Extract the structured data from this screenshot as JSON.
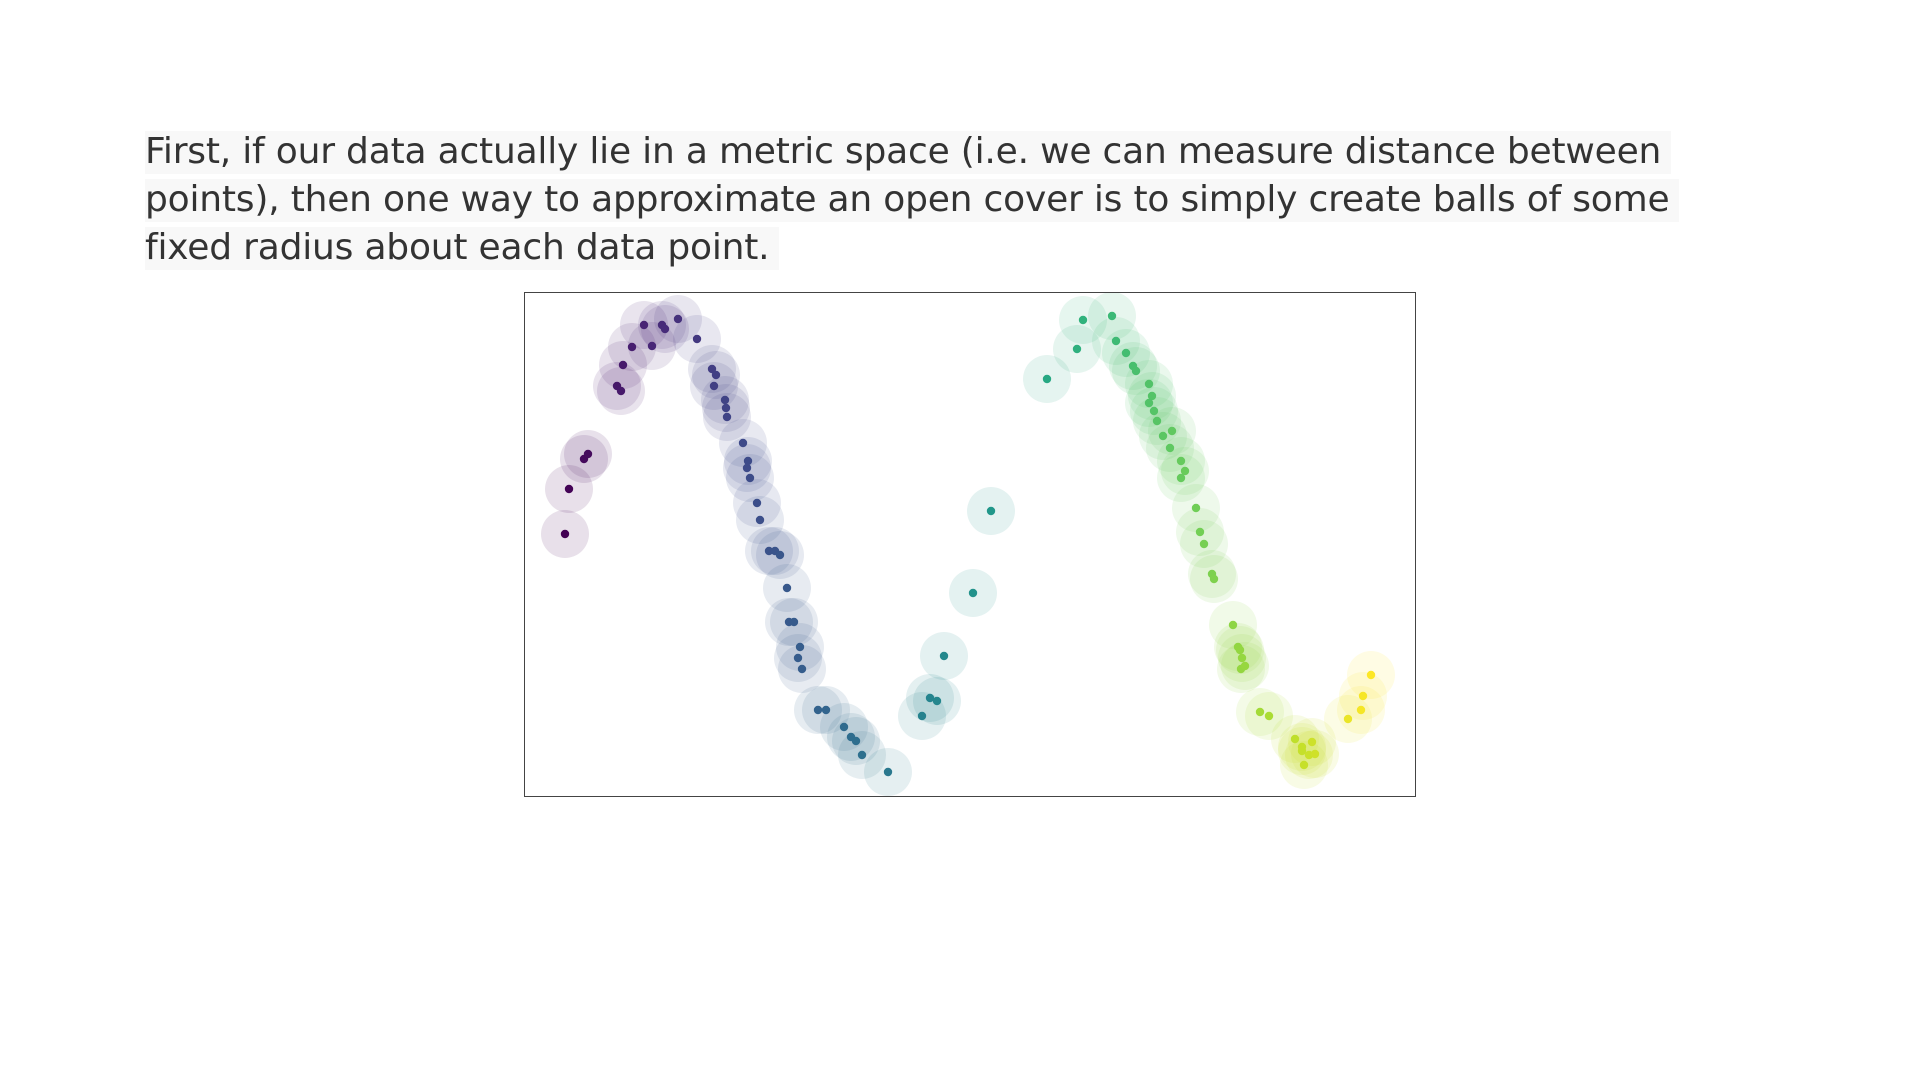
{
  "text": {
    "paragraph": "First, if our data actually lie in a metric space (i.e. we can measure distance between points), then one way to approximate an open cover is to simply create balls of some fixed radius about each data point."
  },
  "chart_data": {
    "type": "scatter",
    "title": "",
    "xlabel": "",
    "ylabel": "",
    "xlim": [
      0,
      890
    ],
    "ylim": [
      0,
      503
    ],
    "ball_radius": 24,
    "ball_opacity": 0.12,
    "colormap": "viridis",
    "grid": false,
    "axes_ticks": false,
    "points": [
      [
        40,
        241
      ],
      [
        44,
        196
      ],
      [
        59,
        166
      ],
      [
        63,
        161
      ],
      [
        92,
        93
      ],
      [
        96,
        98
      ],
      [
        98,
        72
      ],
      [
        107,
        54
      ],
      [
        119,
        32
      ],
      [
        127,
        53
      ],
      [
        137,
        32
      ],
      [
        140,
        36
      ],
      [
        153,
        26
      ],
      [
        172,
        46
      ],
      [
        187,
        76
      ],
      [
        191,
        82
      ],
      [
        189,
        93
      ],
      [
        200,
        107
      ],
      [
        201,
        115
      ],
      [
        202,
        124
      ],
      [
        218,
        150
      ],
      [
        223,
        168
      ],
      [
        222,
        175
      ],
      [
        225,
        185
      ],
      [
        232,
        210
      ],
      [
        235,
        227
      ],
      [
        244,
        258
      ],
      [
        250,
        258
      ],
      [
        255,
        262
      ],
      [
        262,
        295
      ],
      [
        264,
        329
      ],
      [
        269,
        329
      ],
      [
        275,
        354
      ],
      [
        273,
        365
      ],
      [
        277,
        376
      ],
      [
        293,
        417
      ],
      [
        301,
        417
      ],
      [
        319,
        434
      ],
      [
        326,
        444
      ],
      [
        331,
        448
      ],
      [
        337,
        462
      ],
      [
        363,
        479
      ],
      [
        397,
        423
      ],
      [
        405,
        405
      ],
      [
        412,
        408
      ],
      [
        419,
        363
      ],
      [
        448,
        300
      ],
      [
        466,
        218
      ],
      [
        522,
        86
      ],
      [
        552,
        56
      ],
      [
        558,
        27
      ],
      [
        587,
        23
      ],
      [
        591,
        48
      ],
      [
        601,
        60
      ],
      [
        608,
        73
      ],
      [
        611,
        78
      ],
      [
        624,
        91
      ],
      [
        627,
        103
      ],
      [
        624,
        110
      ],
      [
        629,
        118
      ],
      [
        632,
        128
      ],
      [
        638,
        143
      ],
      [
        647,
        138
      ],
      [
        645,
        155
      ],
      [
        656,
        168
      ],
      [
        660,
        178
      ],
      [
        656,
        185
      ],
      [
        671,
        215
      ],
      [
        675,
        239
      ],
      [
        679,
        251
      ],
      [
        687,
        281
      ],
      [
        689,
        286
      ],
      [
        708,
        332
      ],
      [
        713,
        354
      ],
      [
        715,
        357
      ],
      [
        717,
        365
      ],
      [
        716,
        376
      ],
      [
        720,
        373
      ],
      [
        735,
        419
      ],
      [
        744,
        423
      ],
      [
        770,
        446
      ],
      [
        777,
        454
      ],
      [
        777,
        458
      ],
      [
        787,
        449
      ],
      [
        784,
        462
      ],
      [
        790,
        461
      ],
      [
        779,
        472
      ],
      [
        823,
        426
      ],
      [
        836,
        417
      ],
      [
        838,
        403
      ],
      [
        846,
        382
      ]
    ]
  }
}
